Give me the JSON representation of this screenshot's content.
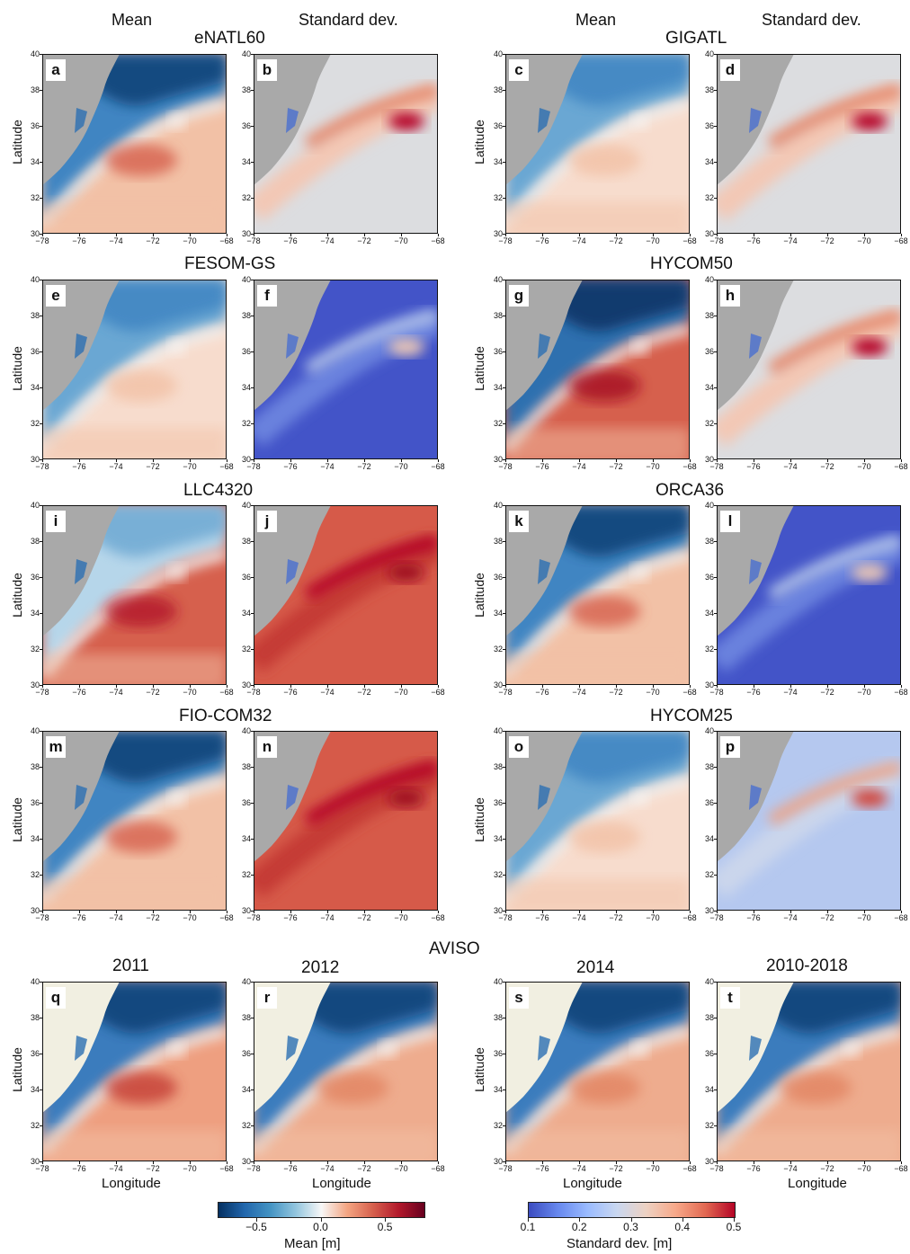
{
  "column_headers": [
    "Mean",
    "Standard dev.",
    "Mean",
    "Standard dev."
  ],
  "models": [
    "eNATL60",
    "GIGATL",
    "FESOM-GS",
    "HYCOM50",
    "LLC4320",
    "ORCA36",
    "FIO-COM32",
    "HYCOM25"
  ],
  "aviso": {
    "title": "AVISO",
    "years": [
      "2011",
      "2012",
      "2014",
      "2010-2018"
    ]
  },
  "panel_labels": [
    "a",
    "b",
    "c",
    "d",
    "e",
    "f",
    "g",
    "h",
    "i",
    "j",
    "k",
    "l",
    "m",
    "n",
    "o",
    "p",
    "q",
    "r",
    "s",
    "t"
  ],
  "axis": {
    "ylabel": "Latitude",
    "xlabel": "Longitude",
    "x_ticks": [
      "−78",
      "−76",
      "−74",
      "−72",
      "−70",
      "−68"
    ],
    "y_ticks": [
      "30",
      "32",
      "34",
      "36",
      "38",
      "40"
    ]
  },
  "colorbars": {
    "mean": {
      "label": "Mean [m]",
      "ticks": [
        "−0.5",
        "0.0",
        "0.5"
      ],
      "range": [
        -0.8,
        0.8
      ],
      "colormap": "RdBu_r"
    },
    "std": {
      "label": "Standard dev. [m]",
      "ticks": [
        "0.1",
        "0.2",
        "0.3",
        "0.4",
        "0.5"
      ],
      "range": [
        0.1,
        0.5
      ],
      "colormap": "coolwarm"
    }
  },
  "colors": {
    "land": "#a9a9a9",
    "aviso_land": "#f1efe1",
    "deep_blue": "#0d3f75",
    "blue": "#3f85c2",
    "light_blue": "#b6d6ea",
    "white": "#f7f4f2",
    "light_red": "#f2c1a6",
    "red": "#d6604d",
    "dark_red": "#a50e24",
    "std_low": "#4354c8",
    "std_mid": "#dcdde0",
    "std_high": "#b40426"
  }
}
